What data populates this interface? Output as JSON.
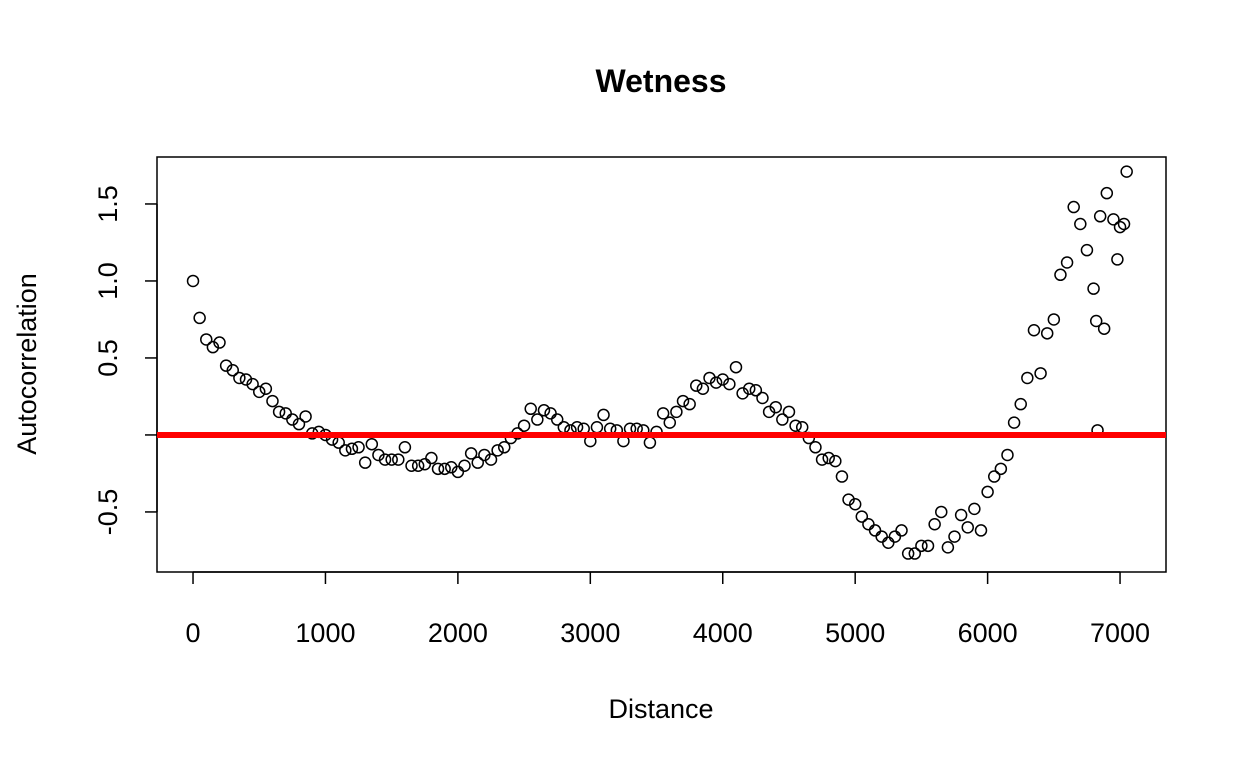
{
  "chart_data": {
    "type": "scatter",
    "title": "Wetness",
    "x_label": "Distance",
    "y_label": "Autocorrelation",
    "x": [
      0,
      50,
      100,
      150,
      200,
      250,
      300,
      350,
      400,
      450,
      500,
      550,
      600,
      650,
      700,
      750,
      800,
      850,
      900,
      950,
      1000,
      1050,
      1100,
      1150,
      1200,
      1250,
      1300,
      1350,
      1400,
      1450,
      1500,
      1550,
      1600,
      1650,
      1700,
      1750,
      1800,
      1850,
      1900,
      1950,
      2000,
      2050,
      2100,
      2150,
      2200,
      2250,
      2300,
      2350,
      2400,
      2450,
      2500,
      2550,
      2600,
      2650,
      2700,
      2750,
      2800,
      2850,
      2900,
      2950,
      3000,
      3050,
      3100,
      3150,
      3200,
      3250,
      3300,
      3350,
      3400,
      3450,
      3500,
      3550,
      3600,
      3650,
      3700,
      3750,
      3800,
      3850,
      3900,
      3950,
      4000,
      4050,
      4100,
      4150,
      4200,
      4250,
      4300,
      4350,
      4400,
      4450,
      4500,
      4550,
      4600,
      4650,
      4700,
      4750,
      4800,
      4850,
      4900,
      4950,
      5000,
      5050,
      5100,
      5150,
      5200,
      5250,
      5300,
      5350,
      5400,
      5450,
      5500,
      5550,
      5600,
      5650,
      5700,
      5750,
      5800,
      5850,
      5900,
      5950,
      6000,
      6050,
      6100,
      6150,
      6200,
      6250,
      6300,
      6350,
      6400,
      6450,
      6500,
      6550,
      6600,
      6650,
      6700,
      6750,
      6800,
      6820,
      6830,
      6850,
      6880,
      6900,
      6950,
      6980,
      7000,
      7030,
      7050
    ],
    "values": [
      1.0,
      0.76,
      0.62,
      0.57,
      0.6,
      0.45,
      0.42,
      0.37,
      0.36,
      0.33,
      0.28,
      0.3,
      0.22,
      0.15,
      0.14,
      0.1,
      0.07,
      0.12,
      0.01,
      0.02,
      0.0,
      -0.03,
      -0.05,
      -0.1,
      -0.09,
      -0.08,
      -0.18,
      -0.06,
      -0.13,
      -0.16,
      -0.16,
      -0.16,
      -0.08,
      -0.2,
      -0.2,
      -0.19,
      -0.15,
      -0.22,
      -0.22,
      -0.21,
      -0.24,
      -0.2,
      -0.12,
      -0.18,
      -0.13,
      -0.16,
      -0.1,
      -0.08,
      -0.02,
      0.01,
      0.06,
      0.17,
      0.1,
      0.16,
      0.14,
      0.1,
      0.05,
      0.03,
      0.05,
      0.04,
      -0.04,
      0.05,
      0.13,
      0.04,
      0.03,
      -0.04,
      0.04,
      0.04,
      0.03,
      -0.05,
      0.02,
      0.14,
      0.08,
      0.15,
      0.22,
      0.2,
      0.32,
      0.3,
      0.37,
      0.34,
      0.36,
      0.33,
      0.44,
      0.27,
      0.3,
      0.29,
      0.24,
      0.15,
      0.18,
      0.1,
      0.15,
      0.06,
      0.05,
      -0.02,
      -0.08,
      -0.16,
      -0.15,
      -0.17,
      -0.27,
      -0.42,
      -0.45,
      -0.53,
      -0.58,
      -0.62,
      -0.66,
      -0.7,
      -0.66,
      -0.62,
      -0.77,
      -0.77,
      -0.72,
      -0.72,
      -0.58,
      -0.5,
      -0.73,
      -0.66,
      -0.52,
      -0.6,
      -0.48,
      -0.62,
      -0.37,
      -0.27,
      -0.22,
      -0.13,
      0.08,
      0.2,
      0.37,
      0.68,
      0.4,
      0.66,
      0.75,
      1.04,
      1.12,
      1.48,
      1.37,
      1.2,
      0.95,
      0.74,
      0.03,
      1.42,
      0.69,
      1.57,
      1.4,
      1.14,
      1.35,
      1.37,
      1.71
    ],
    "color": "#000000",
    "xlim": [
      -272,
      7347
    ],
    "ylim": [
      -0.89,
      1.805
    ],
    "xticks": [
      0,
      1000,
      2000,
      3000,
      4000,
      5000,
      6000,
      7000
    ],
    "yticks": [
      -0.5,
      {
        "value": 0,
        "label": null
      },
      0.5,
      {
        "value": 1,
        "label": "1.0"
      },
      1.5
    ],
    "reference_line": {
      "value": 0,
      "color": "#ff0000"
    }
  }
}
